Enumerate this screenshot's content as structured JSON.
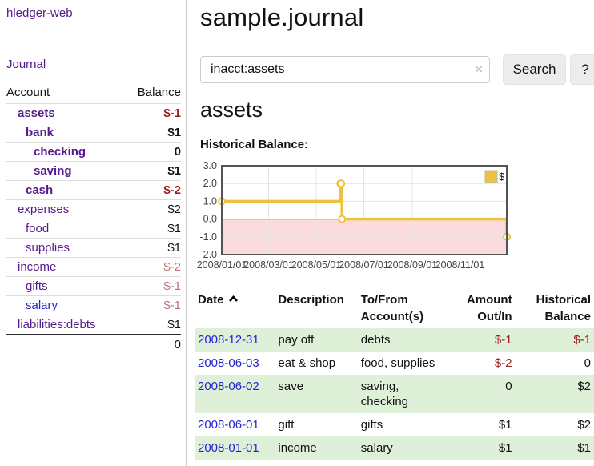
{
  "sidebar": {
    "app_title": "hledger-web",
    "nav": {
      "journal": "Journal"
    },
    "columns": {
      "account": "Account",
      "balance": "Balance"
    },
    "accounts": [
      {
        "name": "assets",
        "balance": "$-1",
        "indent": 1,
        "bold": true,
        "negative": "strong"
      },
      {
        "name": "bank",
        "balance": "$1",
        "indent": 2,
        "bold": true
      },
      {
        "name": "checking",
        "balance": "0",
        "indent": 3,
        "bold": true
      },
      {
        "name": "saving",
        "balance": "$1",
        "indent": 3,
        "bold": true
      },
      {
        "name": "cash",
        "balance": "$-2",
        "indent": 2,
        "bold": true,
        "negative": "strong"
      },
      {
        "name": "expenses",
        "balance": "$2",
        "indent": 1
      },
      {
        "name": "food",
        "balance": "$1",
        "indent": 2
      },
      {
        "name": "supplies",
        "balance": "$1",
        "indent": 2
      },
      {
        "name": "income",
        "balance": "$-2",
        "indent": 1,
        "negative": "soft"
      },
      {
        "name": "gifts",
        "balance": "$-1",
        "indent": 2,
        "negative": "soft"
      },
      {
        "name": "salary",
        "balance": "$-1",
        "indent": 2,
        "negative": "soft",
        "link_color": "blue"
      },
      {
        "name": "liabilities:debts",
        "balance": "$1",
        "indent": 1
      }
    ],
    "total": "0"
  },
  "header": {
    "title": "sample.journal"
  },
  "search": {
    "value": "inacct:assets",
    "clear_label": "×",
    "button_label": "Search",
    "help_label": "?"
  },
  "account_page": {
    "title": "assets",
    "chart_title": "Historical Balance:"
  },
  "chart_data": {
    "type": "line",
    "title": "Historical Balance",
    "step": true,
    "x_type": "date",
    "xrange": [
      "2008-01-01",
      "2008-12-31"
    ],
    "ylim": [
      -2,
      3
    ],
    "ytick_labels": [
      "3.0",
      "2.0",
      "1.0",
      "0.0",
      "-1.0",
      "-2.0"
    ],
    "ytick_values": [
      3,
      2,
      1,
      0,
      -1,
      -2
    ],
    "xticks": [
      "2008/01/01",
      "2008/03/01",
      "2008/05/01",
      "2008/07/01",
      "2008/09/01",
      "2008/11/01"
    ],
    "series": [
      {
        "name": "$",
        "color": "#edc240",
        "points": [
          [
            "2008-01-01",
            1
          ],
          [
            "2008-06-01",
            2
          ],
          [
            "2008-06-02",
            2
          ],
          [
            "2008-06-03",
            0
          ],
          [
            "2008-12-31",
            -1
          ]
        ]
      }
    ],
    "legend": {
      "position": "top-right",
      "label": "$"
    },
    "grid": true,
    "gridline_color": "#e4e4e4",
    "negative_fill": "#fbdbdb",
    "zero_line_color": "#8b0000",
    "border_color": "#545454"
  },
  "register": {
    "headers": {
      "date": "Date",
      "description": "Description",
      "accounts": "To/From Account(s)",
      "amount": "Amount Out/In",
      "balance": "Historical Balance"
    },
    "sort": "date-ascending",
    "rows": [
      {
        "date": "2008-12-31",
        "description": "pay off",
        "accounts": "debts",
        "amount": "$-1",
        "balance": "$-1"
      },
      {
        "date": "2008-06-03",
        "description": "eat & shop",
        "accounts": "food, supplies",
        "amount": "$-2",
        "balance": "0"
      },
      {
        "date": "2008-06-02",
        "description": "save",
        "accounts": "saving, checking",
        "amount": "0",
        "balance": "$2"
      },
      {
        "date": "2008-06-01",
        "description": "gift",
        "accounts": "gifts",
        "amount": "$1",
        "balance": "$2"
      },
      {
        "date": "2008-01-01",
        "description": "income",
        "accounts": "salary",
        "amount": "$1",
        "balance": "$1"
      }
    ]
  },
  "colors": {
    "link_purple": "#551a8b",
    "link_blue": "#2323d2",
    "negative_strong": "#9b1c1c",
    "negative_soft": "#bf7171",
    "row_stripe_green": "#dff0d8",
    "series_gold": "#edc240"
  }
}
